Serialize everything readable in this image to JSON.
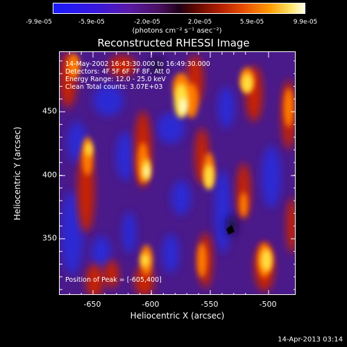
{
  "colorbar": {
    "ticks": [
      "-9.9e-05",
      "-5.9e-05",
      "-2.0e-05",
      "2.0e-05",
      "5.9e-05",
      "9.9e-05"
    ],
    "unit": "(photons cm⁻² s⁻¹ asec⁻²)"
  },
  "title": "Reconstructed RHESSI Image",
  "info_lines": [
    "14-May-2002 16:43:30.000 to 16:49:30.000",
    "Detectors: 4F 5F 6F 7F 8F, Att 0",
    "Energy Range: 12.0 - 25.0 keV",
    "Clean     Total counts: 3.07E+03"
  ],
  "peak_text": "Position of Peak = [-605,400]",
  "x_ticks": [
    "-650",
    "-600",
    "-550",
    "-500"
  ],
  "y_ticks": [
    "450",
    "400",
    "350"
  ],
  "xlabel": "Heliocentric X (arcsec)",
  "ylabel": "Heliocentric Y (arcsec)",
  "timestamp": "14-Apr-2013 03:14"
}
